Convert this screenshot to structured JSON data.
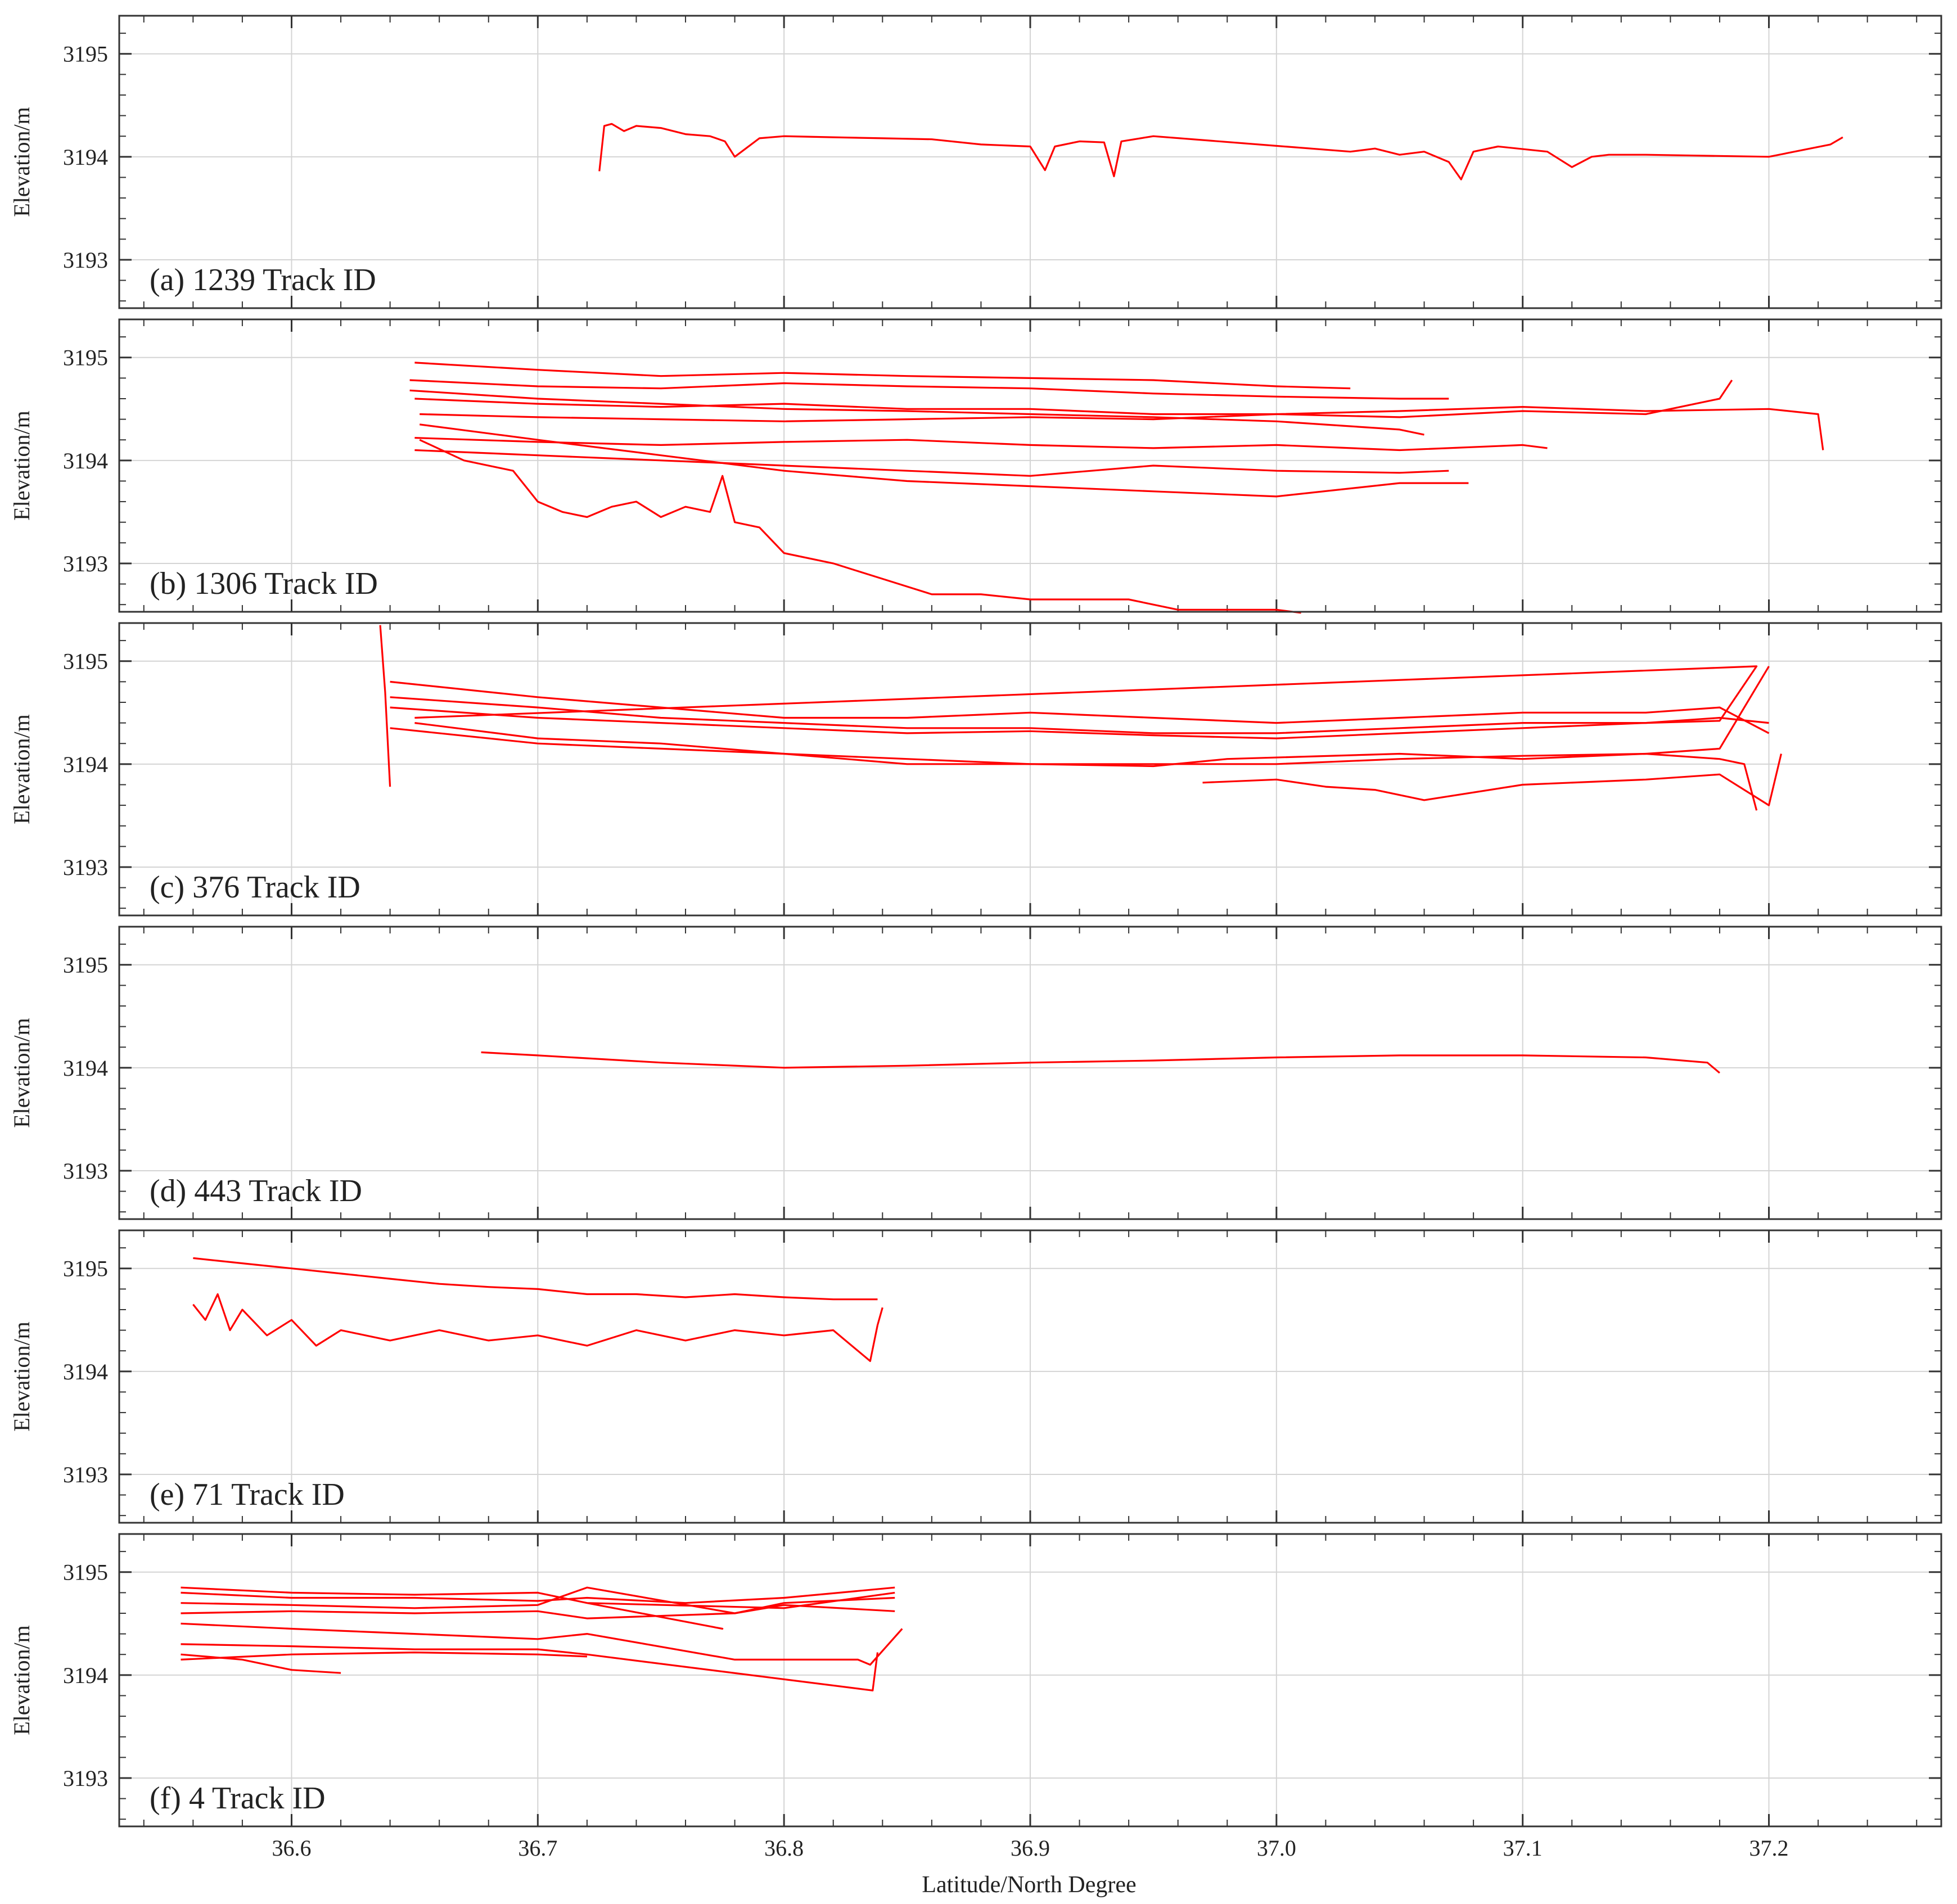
{
  "figure": {
    "xlabel": "Latitude/North Degree",
    "line_color": "#ff0000",
    "grid_color": "#d4d4d4",
    "axis_color": "#333333"
  },
  "chart_data": [
    {
      "type": "line",
      "label": "(a) 1239 Track ID",
      "ylabel": "Elevation/m",
      "xlim": [
        36.53,
        37.27
      ],
      "ylim": [
        3192.53,
        3195.37
      ],
      "xticks": [
        36.6,
        36.7,
        36.8,
        36.9,
        37.0,
        37.1,
        37.2
      ],
      "xtick_labels": [],
      "yticks": [
        3193,
        3194,
        3195
      ],
      "ytick_labels": [
        "3193",
        "3194",
        "3195"
      ],
      "grid": true,
      "series": [
        {
          "x": [
            36.725,
            36.727,
            36.73,
            36.735,
            36.74,
            36.75,
            36.76,
            36.77,
            36.776,
            36.78,
            36.79,
            36.8,
            36.82,
            36.84,
            36.86,
            36.88,
            36.9,
            36.906,
            36.91,
            36.92,
            36.93,
            36.934,
            36.937,
            36.95,
            37.03,
            37.04,
            37.05,
            37.06,
            37.07,
            37.075,
            37.08,
            37.09,
            37.11,
            37.12,
            37.128,
            37.135,
            37.15,
            37.2,
            37.225,
            37.23
          ],
          "y": [
            3193.86,
            3194.3,
            3194.32,
            3194.25,
            3194.3,
            3194.28,
            3194.22,
            3194.2,
            3194.15,
            3194.0,
            3194.18,
            3194.2,
            3194.19,
            3194.18,
            3194.17,
            3194.12,
            3194.1,
            3193.87,
            3194.1,
            3194.15,
            3194.14,
            3193.81,
            3194.15,
            3194.2,
            3194.05,
            3194.08,
            3194.02,
            3194.05,
            3193.95,
            3193.78,
            3194.05,
            3194.1,
            3194.05,
            3193.9,
            3194.0,
            3194.02,
            3194.02,
            3194.0,
            3194.12,
            3194.19
          ]
        }
      ]
    },
    {
      "type": "line",
      "label": "(b) 1306 Track ID",
      "ylabel": "Elevation/m",
      "xlim": [
        36.53,
        37.27
      ],
      "ylim": [
        3192.53,
        3195.37
      ],
      "xticks": [
        36.6,
        36.7,
        36.8,
        36.9,
        37.0,
        37.1,
        37.2
      ],
      "xtick_labels": [],
      "yticks": [
        3193,
        3194,
        3195
      ],
      "ytick_labels": [
        "3193",
        "3194",
        "3195"
      ],
      "grid": true,
      "series": [
        {
          "x": [
            36.65,
            36.7,
            36.75,
            36.8,
            36.85,
            36.9,
            36.95,
            37.0,
            37.03
          ],
          "y": [
            3194.95,
            3194.88,
            3194.82,
            3194.85,
            3194.82,
            3194.8,
            3194.78,
            3194.72,
            3194.7
          ]
        },
        {
          "x": [
            36.648,
            36.7,
            36.75,
            36.8,
            36.85,
            36.9,
            36.95,
            37.0,
            37.05,
            37.07
          ],
          "y": [
            3194.78,
            3194.72,
            3194.7,
            3194.75,
            3194.72,
            3194.7,
            3194.65,
            3194.62,
            3194.6,
            3194.6
          ]
        },
        {
          "x": [
            36.65,
            36.7,
            36.75,
            36.8,
            36.85,
            36.9,
            36.95,
            37.0,
            37.05,
            37.1,
            37.15,
            37.18,
            37.185
          ],
          "y": [
            3194.6,
            3194.55,
            3194.52,
            3194.55,
            3194.5,
            3194.5,
            3194.45,
            3194.45,
            3194.42,
            3194.48,
            3194.45,
            3194.6,
            3194.78
          ]
        },
        {
          "x": [
            36.652,
            36.7,
            36.75,
            36.8,
            36.85,
            36.9,
            36.95,
            37.0,
            37.05,
            37.1,
            37.15,
            37.2,
            37.22,
            37.222
          ],
          "y": [
            3194.45,
            3194.42,
            3194.4,
            3194.38,
            3194.4,
            3194.42,
            3194.4,
            3194.45,
            3194.48,
            3194.52,
            3194.48,
            3194.5,
            3194.45,
            3194.1
          ]
        },
        {
          "x": [
            36.648,
            36.7,
            36.75,
            36.8,
            36.85,
            36.9,
            36.95,
            37.0,
            37.05,
            37.06
          ],
          "y": [
            3194.68,
            3194.6,
            3194.55,
            3194.5,
            3194.48,
            3194.45,
            3194.42,
            3194.38,
            3194.3,
            3194.25
          ]
        },
        {
          "x": [
            36.65,
            36.7,
            36.75,
            36.8,
            36.85,
            36.9,
            36.95,
            37.0,
            37.05,
            37.1,
            37.11
          ],
          "y": [
            3194.22,
            3194.18,
            3194.15,
            3194.18,
            3194.2,
            3194.15,
            3194.12,
            3194.15,
            3194.1,
            3194.15,
            3194.12
          ]
        },
        {
          "x": [
            36.65,
            36.7,
            36.75,
            36.8,
            36.85,
            36.9,
            36.95,
            37.0,
            37.05,
            37.07
          ],
          "y": [
            3194.1,
            3194.05,
            3194.0,
            3193.95,
            3193.9,
            3193.85,
            3193.95,
            3193.9,
            3193.88,
            3193.9
          ]
        },
        {
          "x": [
            36.652,
            36.7,
            36.75,
            36.8,
            36.85,
            36.9,
            36.95,
            37.0,
            37.05,
            37.078
          ],
          "y": [
            3194.35,
            3194.2,
            3194.05,
            3193.9,
            3193.8,
            3193.75,
            3193.7,
            3193.65,
            3193.78,
            3193.78
          ]
        },
        {
          "x": [
            36.652,
            36.67,
            36.69,
            36.7,
            36.71,
            36.72,
            36.73,
            36.74,
            36.75,
            36.76,
            36.77,
            36.775,
            36.78,
            36.79,
            36.8,
            36.82,
            36.84,
            36.86,
            36.88,
            36.9,
            36.94,
            36.96,
            37.0,
            37.01
          ],
          "y": [
            3194.2,
            3194.0,
            3193.9,
            3193.6,
            3193.5,
            3193.45,
            3193.55,
            3193.6,
            3193.45,
            3193.55,
            3193.5,
            3193.85,
            3193.4,
            3193.35,
            3193.1,
            3193.0,
            3192.85,
            3192.7,
            3192.7,
            3192.65,
            3192.65,
            3192.55,
            3192.55,
            3192.52
          ]
        }
      ]
    },
    {
      "type": "line",
      "label": "(c) 376 Track ID",
      "ylabel": "Elevation/m",
      "xlim": [
        36.53,
        37.27
      ],
      "ylim": [
        3192.53,
        3195.37
      ],
      "xticks": [
        36.6,
        36.7,
        36.8,
        36.9,
        37.0,
        37.1,
        37.2
      ],
      "xtick_labels": [],
      "yticks": [
        3193,
        3194,
        3195
      ],
      "ytick_labels": [
        "3193",
        "3194",
        "3195"
      ],
      "grid": true,
      "series": [
        {
          "x": [
            36.636,
            36.638,
            36.64
          ],
          "y": [
            3195.35,
            3194.7,
            3193.78
          ]
        },
        {
          "x": [
            36.64,
            36.7,
            36.75,
            36.8,
            36.85,
            36.9,
            36.95,
            37.0,
            37.05,
            37.1,
            37.15,
            37.18,
            37.2
          ],
          "y": [
            3194.8,
            3194.65,
            3194.55,
            3194.45,
            3194.45,
            3194.5,
            3194.45,
            3194.4,
            3194.45,
            3194.5,
            3194.5,
            3194.55,
            3194.3
          ]
        },
        {
          "x": [
            36.64,
            36.7,
            36.75,
            36.8,
            36.85,
            36.9,
            36.95,
            37.0,
            37.05,
            37.1,
            37.15,
            37.18,
            37.2
          ],
          "y": [
            3194.65,
            3194.55,
            3194.45,
            3194.4,
            3194.35,
            3194.35,
            3194.3,
            3194.3,
            3194.35,
            3194.4,
            3194.4,
            3194.45,
            3194.4
          ]
        },
        {
          "x": [
            36.64,
            36.7,
            36.75,
            36.8,
            36.85,
            36.9,
            36.95,
            37.0,
            37.05,
            37.1,
            37.15,
            37.18,
            37.195,
            36.65
          ],
          "y": [
            3194.55,
            3194.45,
            3194.4,
            3194.35,
            3194.3,
            3194.32,
            3194.28,
            3194.25,
            3194.3,
            3194.35,
            3194.4,
            3194.42,
            3194.95,
            3194.45
          ]
        },
        {
          "x": [
            36.64,
            36.7,
            36.75,
            36.8,
            36.85,
            36.9,
            36.95,
            37.0,
            37.05,
            37.1,
            37.15,
            37.18,
            37.19,
            37.195
          ],
          "y": [
            3194.35,
            3194.2,
            3194.15,
            3194.1,
            3194.05,
            3194.0,
            3194.0,
            3194.0,
            3194.05,
            3194.08,
            3194.1,
            3194.05,
            3194.0,
            3193.55
          ]
        },
        {
          "x": [
            36.65,
            36.7,
            36.75,
            36.8,
            36.85,
            36.9,
            36.95,
            36.98,
            37.05,
            37.1,
            37.15,
            37.18,
            37.2
          ],
          "y": [
            3194.4,
            3194.25,
            3194.2,
            3194.1,
            3194.0,
            3194.0,
            3193.98,
            3194.05,
            3194.1,
            3194.05,
            3194.1,
            3194.15,
            3194.95
          ]
        },
        {
          "x": [
            36.97,
            37.0,
            37.02,
            37.04,
            37.06,
            37.1,
            37.15,
            37.18,
            37.2,
            37.205
          ],
          "y": [
            3193.82,
            3193.85,
            3193.78,
            3193.75,
            3193.65,
            3193.8,
            3193.85,
            3193.9,
            3193.6,
            3194.1
          ]
        }
      ]
    },
    {
      "type": "line",
      "label": "(d) 443 Track ID",
      "ylabel": "Elevation/m",
      "xlim": [
        36.53,
        37.27
      ],
      "ylim": [
        3192.53,
        3195.37
      ],
      "xticks": [
        36.6,
        36.7,
        36.8,
        36.9,
        37.0,
        37.1,
        37.2
      ],
      "xtick_labels": [],
      "yticks": [
        3193,
        3194,
        3195
      ],
      "ytick_labels": [
        "3193",
        "3194",
        "3195"
      ],
      "grid": true,
      "series": [
        {
          "x": [
            36.677,
            36.7,
            36.75,
            36.8,
            36.85,
            36.9,
            36.95,
            37.0,
            37.05,
            37.1,
            37.15,
            37.175,
            37.18
          ],
          "y": [
            3194.15,
            3194.12,
            3194.05,
            3194.0,
            3194.02,
            3194.05,
            3194.07,
            3194.1,
            3194.12,
            3194.12,
            3194.1,
            3194.05,
            3193.95
          ]
        }
      ]
    },
    {
      "type": "line",
      "label": "(e) 71 Track ID",
      "ylabel": "Elevation/m",
      "xlim": [
        36.53,
        37.27
      ],
      "ylim": [
        3192.53,
        3195.37
      ],
      "xticks": [
        36.6,
        36.7,
        36.8,
        36.9,
        37.0,
        37.1,
        37.2
      ],
      "xtick_labels": [],
      "yticks": [
        3193,
        3194,
        3195
      ],
      "ytick_labels": [
        "3193",
        "3194",
        "3195"
      ],
      "grid": true,
      "series": [
        {
          "x": [
            36.56,
            36.58,
            36.6,
            36.62,
            36.64,
            36.66,
            36.68,
            36.7,
            36.72,
            36.74,
            36.76,
            36.78,
            36.8,
            36.82,
            36.838
          ],
          "y": [
            3195.1,
            3195.05,
            3195.0,
            3194.95,
            3194.9,
            3194.85,
            3194.82,
            3194.8,
            3194.75,
            3194.75,
            3194.72,
            3194.75,
            3194.72,
            3194.7,
            3194.7
          ]
        },
        {
          "x": [
            36.56,
            36.565,
            36.57,
            36.575,
            36.58,
            36.59,
            36.6,
            36.61,
            36.62,
            36.64,
            36.66,
            36.68,
            36.7,
            36.72,
            36.74,
            36.76,
            36.78,
            36.8,
            36.82,
            36.835,
            36.838,
            36.84
          ],
          "y": [
            3194.65,
            3194.5,
            3194.75,
            3194.4,
            3194.6,
            3194.35,
            3194.5,
            3194.25,
            3194.4,
            3194.3,
            3194.4,
            3194.3,
            3194.35,
            3194.25,
            3194.4,
            3194.3,
            3194.4,
            3194.35,
            3194.4,
            3194.1,
            3194.45,
            3194.62
          ]
        }
      ]
    },
    {
      "type": "line",
      "label": "(f) 4 Track ID",
      "ylabel": "Elevation/m",
      "xlabel": "Latitude/North Degree",
      "xlim": [
        36.53,
        37.27
      ],
      "ylim": [
        3192.53,
        3195.37
      ],
      "xticks": [
        36.6,
        36.7,
        36.8,
        36.9,
        37.0,
        37.1,
        37.2
      ],
      "xtick_labels": [
        "36.6",
        "36.7",
        "36.8",
        "36.9",
        "37.0",
        "37.1",
        "37.2"
      ],
      "yticks": [
        3193,
        3194,
        3195
      ],
      "ytick_labels": [
        "3193",
        "3194",
        "3195"
      ],
      "grid": true,
      "series": [
        {
          "x": [
            36.555,
            36.6,
            36.65,
            36.7,
            36.72,
            36.76,
            36.8,
            36.845
          ],
          "y": [
            3194.8,
            3194.75,
            3194.75,
            3194.72,
            3194.75,
            3194.7,
            3194.75,
            3194.85
          ]
        },
        {
          "x": [
            36.555,
            36.6,
            36.65,
            36.7,
            36.72,
            36.78,
            36.8,
            36.845
          ],
          "y": [
            3194.7,
            3194.68,
            3194.65,
            3194.68,
            3194.85,
            3194.6,
            3194.7,
            3194.75
          ]
        },
        {
          "x": [
            36.555,
            36.6,
            36.65,
            36.7,
            36.72,
            36.78,
            36.8,
            36.845
          ],
          "y": [
            3194.6,
            3194.62,
            3194.6,
            3194.62,
            3194.55,
            3194.6,
            3194.68,
            3194.62
          ]
        },
        {
          "x": [
            36.555,
            36.6,
            36.65,
            36.7,
            36.72,
            36.775,
            36.72,
            36.8,
            36.845
          ],
          "y": [
            3194.85,
            3194.8,
            3194.78,
            3194.8,
            3194.7,
            3194.45,
            3194.7,
            3194.65,
            3194.8
          ]
        },
        {
          "x": [
            36.555,
            36.6,
            36.65,
            36.7,
            36.72,
            36.78,
            36.83,
            36.835,
            36.848
          ],
          "y": [
            3194.5,
            3194.45,
            3194.4,
            3194.35,
            3194.4,
            3194.15,
            3194.15,
            3194.1,
            3194.45
          ]
        },
        {
          "x": [
            36.555,
            36.6,
            36.65,
            36.7,
            36.72,
            36.836,
            36.838
          ],
          "y": [
            3194.3,
            3194.28,
            3194.25,
            3194.25,
            3194.2,
            3193.85,
            3194.22
          ]
        },
        {
          "x": [
            36.555,
            36.58,
            36.6,
            36.62
          ],
          "y": [
            3194.2,
            3194.15,
            3194.05,
            3194.02
          ]
        },
        {
          "x": [
            36.555,
            36.6,
            36.65,
            36.7,
            36.72
          ],
          "y": [
            3194.15,
            3194.2,
            3194.22,
            3194.2,
            3194.18
          ]
        }
      ]
    }
  ]
}
